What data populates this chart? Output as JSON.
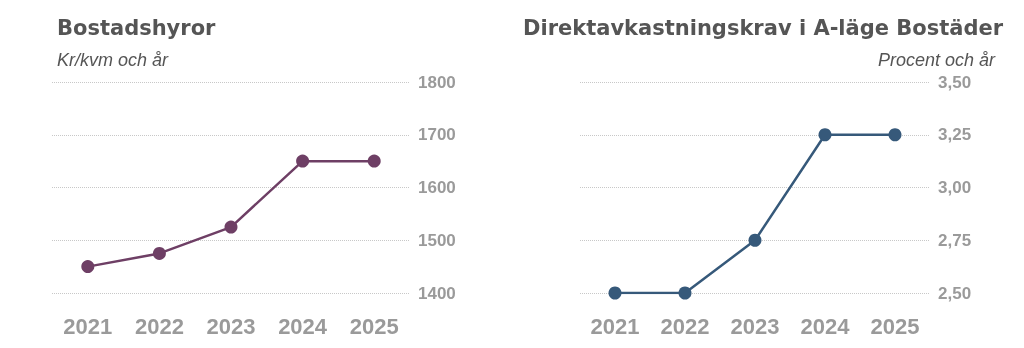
{
  "chart_data": [
    {
      "type": "line",
      "title": "Bostadshyror",
      "subtitle": "Kr/kvm och år",
      "categories": [
        "2021",
        "2022",
        "2023",
        "2024",
        "2025"
      ],
      "series": [
        {
          "color": "#6e3f65",
          "values": [
            1450,
            1475,
            1525,
            1650,
            1650
          ]
        }
      ],
      "ylim": [
        1400,
        1800
      ],
      "yticks": [
        1400,
        1500,
        1600,
        1700,
        1800
      ],
      "grid": "y",
      "marker": "circle",
      "line_style": "solid"
    },
    {
      "type": "line",
      "title": "Direktavkastningskrav i A-läge Bostäder",
      "subtitle": "Procent och år",
      "categories": [
        "2021",
        "2022",
        "2023",
        "2024",
        "2025"
      ],
      "series": [
        {
          "color": "#36597a",
          "values": [
            2.5,
            2.5,
            2.75,
            3.25,
            3.25
          ]
        }
      ],
      "ylim": [
        2.5,
        3.5
      ],
      "yticks": [
        {
          "value": 2.5,
          "label": "2,50"
        },
        {
          "value": 2.75,
          "label": "2,75"
        },
        {
          "value": 3,
          "label": "3,00"
        },
        {
          "value": 3.25,
          "label": "3,25"
        },
        {
          "value": 3.5,
          "label": "3,50"
        }
      ],
      "grid": "y",
      "marker": "circle",
      "line_style": "solid"
    }
  ]
}
